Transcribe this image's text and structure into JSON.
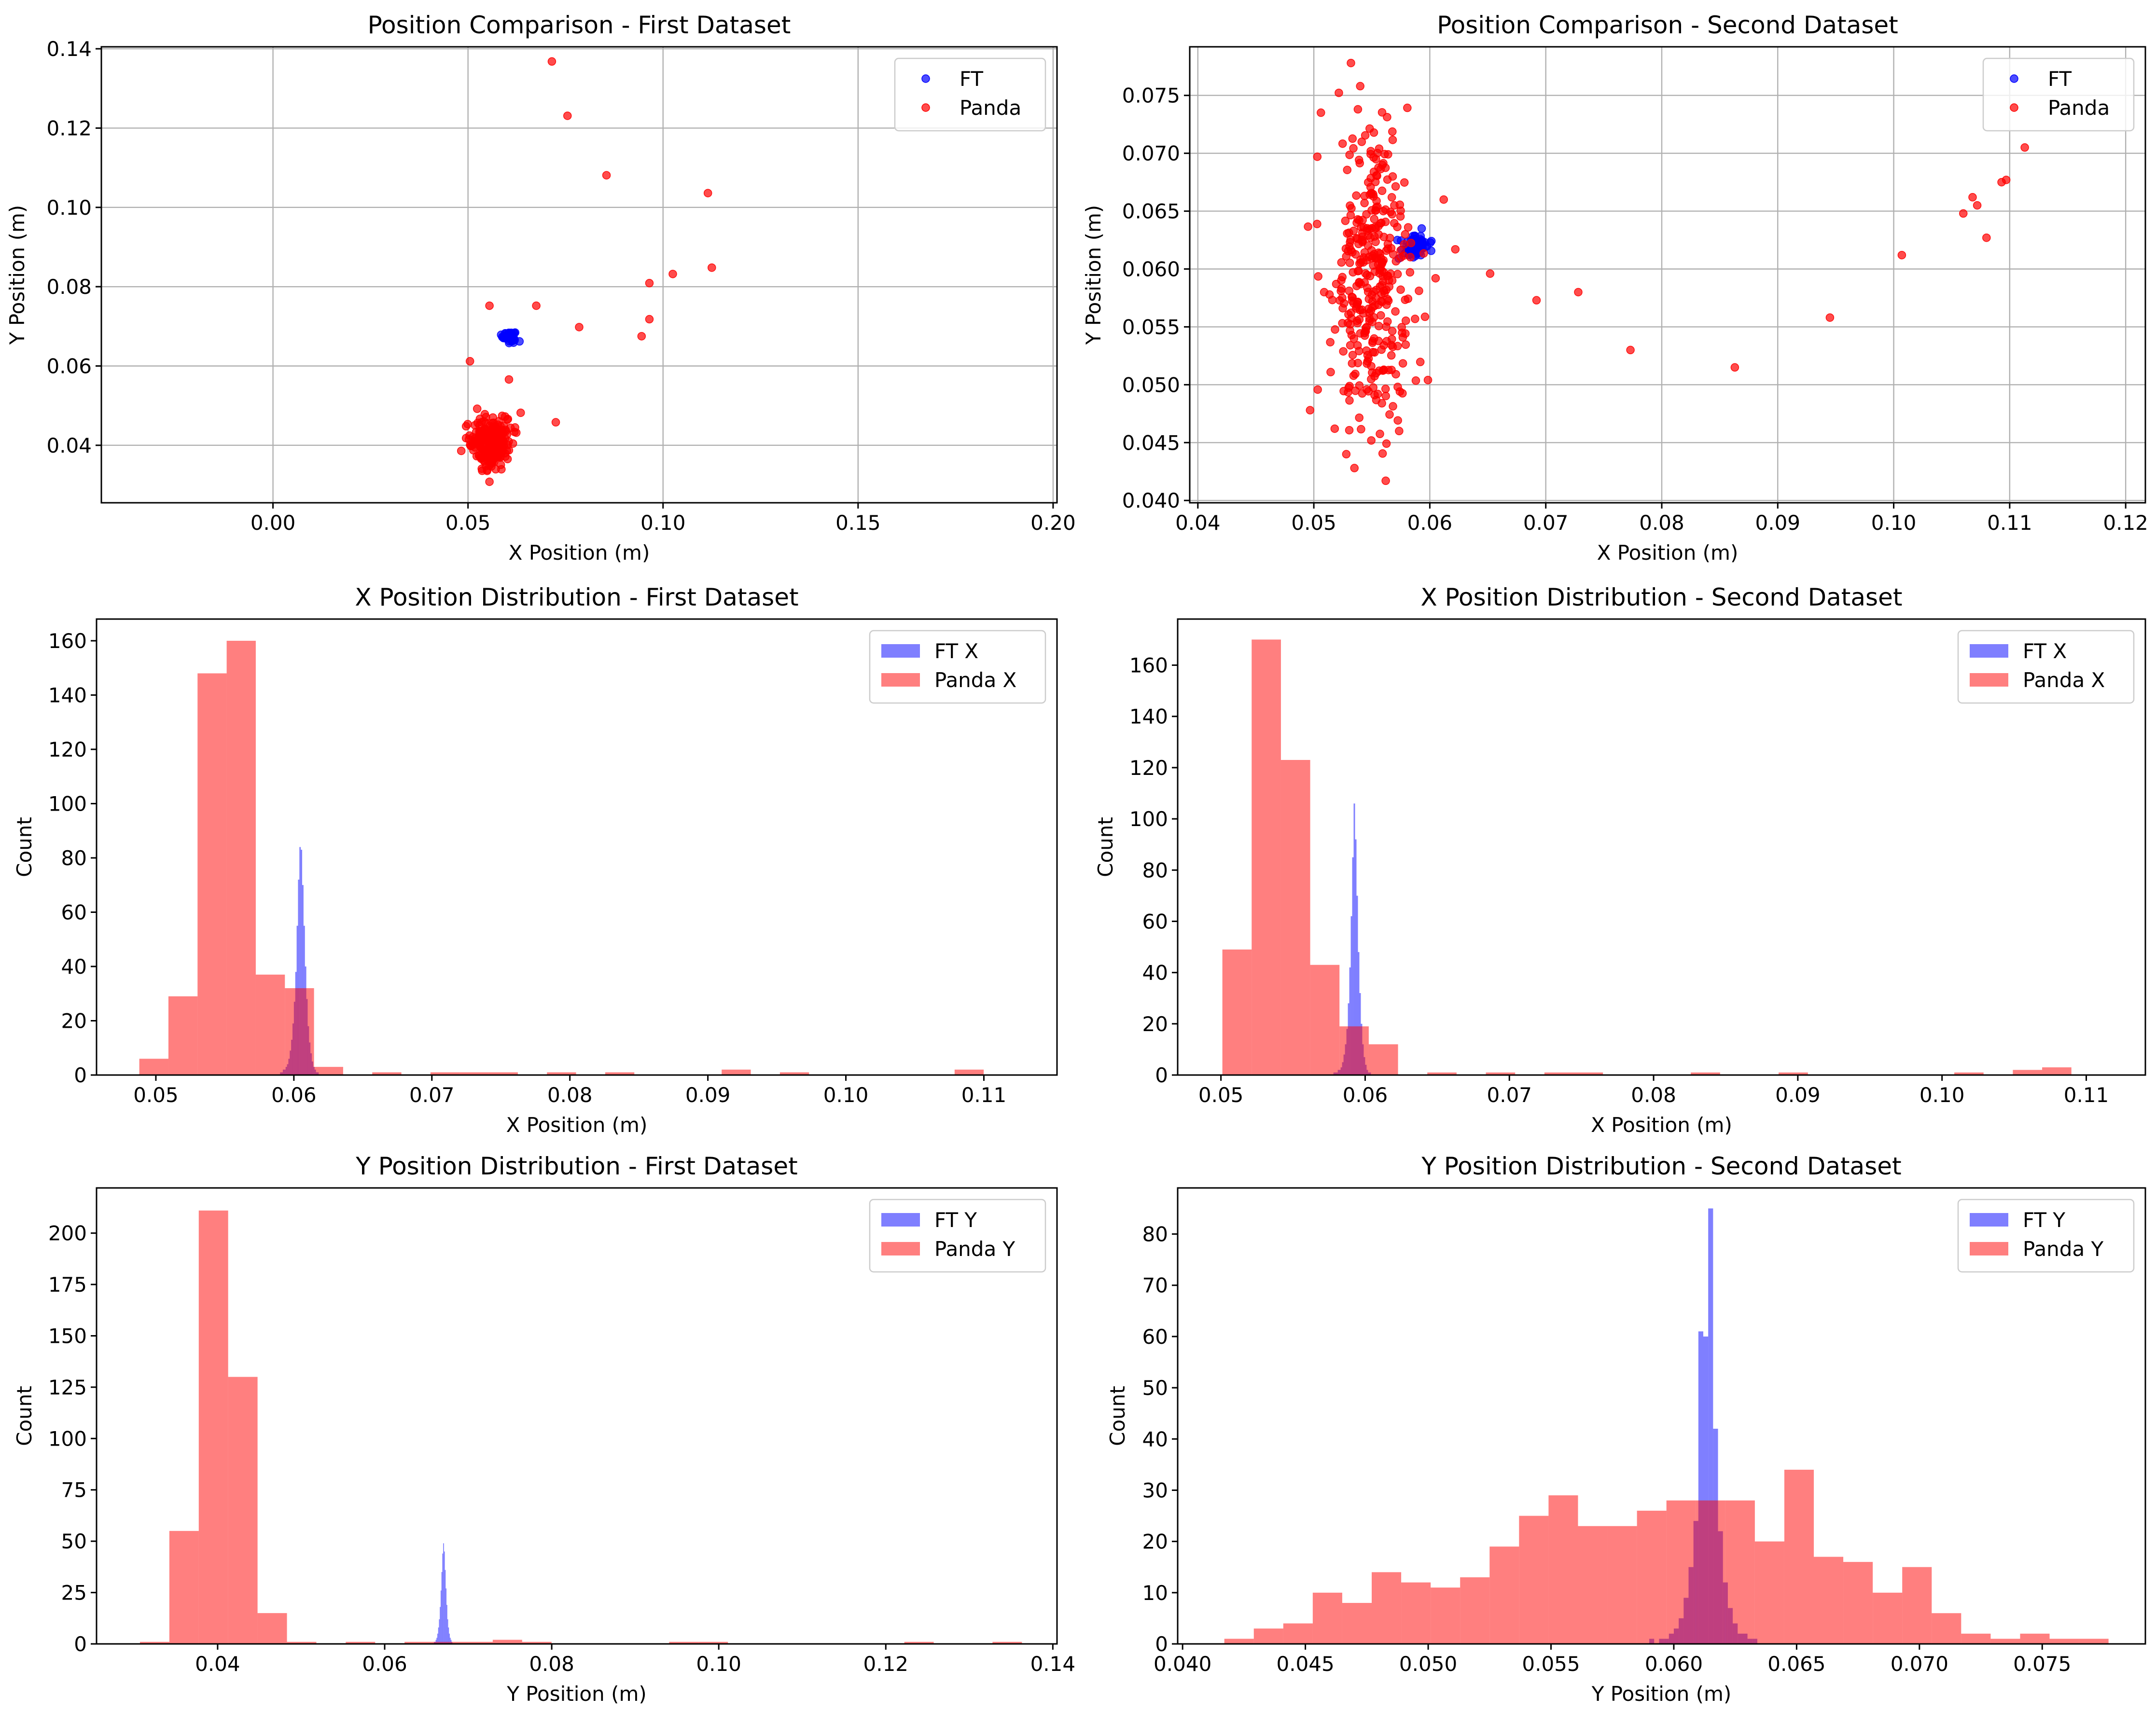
{
  "chart_data": [
    {
      "type": "scatter",
      "title": "Position Comparison - First Dataset",
      "xlabel": "X Position (m)",
      "ylabel": "Y Position (m)",
      "xlim": [
        -0.044,
        0.201
      ],
      "ylim": [
        0.0255,
        0.1405
      ],
      "xticks": [
        0.0,
        0.05,
        0.1,
        0.15,
        0.2
      ],
      "xtick_labels": [
        "0.00",
        "0.05",
        "0.10",
        "0.15",
        "0.20"
      ],
      "yticks": [
        0.04,
        0.06,
        0.08,
        0.1,
        0.12,
        0.14
      ],
      "ytick_labels": [
        "0.04",
        "0.06",
        "0.08",
        "0.10",
        "0.12",
        "0.14"
      ],
      "grid": true,
      "legend_position": "top-right",
      "series": [
        {
          "name": "FT",
          "color": "#0000ff",
          "clusters": [
            {
              "cx": 0.0605,
              "cy": 0.0675,
              "sx": 0.0008,
              "sy": 0.0006,
              "n": 60
            }
          ],
          "points": [
            [
              0.0632,
              0.0662
            ],
            [
              0.0598,
              0.0682
            ],
            [
              0.0615,
              0.0668
            ]
          ]
        },
        {
          "name": "Panda",
          "color": "#ff0000",
          "clusters": [
            {
              "cx": 0.0565,
              "cy": 0.0405,
              "sx": 0.0025,
              "sy": 0.0032,
              "n": 250
            }
          ],
          "points": [
            [
              0.0715,
              0.1368
            ],
            [
              0.0755,
              0.1231
            ],
            [
              0.0855,
              0.1081
            ],
            [
              0.1115,
              0.1036
            ],
            [
              0.0965,
              0.0809
            ],
            [
              0.1025,
              0.0832
            ],
            [
              0.1125,
              0.0848
            ],
            [
              0.0965,
              0.0718
            ],
            [
              0.0945,
              0.0675
            ],
            [
              0.0785,
              0.0698
            ],
            [
              0.0675,
              0.0752
            ],
            [
              0.0555,
              0.0752
            ],
            [
              0.0505,
              0.0612
            ],
            [
              0.0605,
              0.0566
            ],
            [
              0.0635,
              0.0482
            ],
            [
              0.0725,
              0.0458
            ],
            [
              0.0555,
              0.0308
            ],
            [
              0.0495,
              0.0418
            ],
            [
              0.0495,
              0.0448
            ]
          ]
        }
      ]
    },
    {
      "type": "scatter",
      "title": "Position Comparison - Second Dataset",
      "xlabel": "X Position (m)",
      "ylabel": "Y Position (m)",
      "xlim": [
        0.0393,
        0.1217
      ],
      "ylim": [
        0.0398,
        0.0792
      ],
      "xticks": [
        0.04,
        0.05,
        0.06,
        0.07,
        0.08,
        0.09,
        0.1,
        0.11,
        0.12
      ],
      "xtick_labels": [
        "0.04",
        "0.05",
        "0.06",
        "0.07",
        "0.08",
        "0.09",
        "0.10",
        "0.11",
        "0.12"
      ],
      "yticks": [
        0.04,
        0.045,
        0.05,
        0.055,
        0.06,
        0.065,
        0.07,
        0.075
      ],
      "ytick_labels": [
        "0.040",
        "0.045",
        "0.050",
        "0.055",
        "0.060",
        "0.065",
        "0.070",
        "0.075"
      ],
      "grid": true,
      "legend_position": "top-right",
      "series": [
        {
          "name": "FT",
          "color": "#0000ff",
          "clusters": [
            {
              "cx": 0.0588,
              "cy": 0.062,
              "sx": 0.0005,
              "sy": 0.0005,
              "n": 60
            }
          ],
          "points": [
            [
              0.0572,
              0.0625
            ],
            [
              0.0582,
              0.0612
            ],
            [
              0.0593,
              0.0635
            ]
          ]
        },
        {
          "name": "Panda",
          "color": "#ff0000",
          "clusters": [
            {
              "cx": 0.0548,
              "cy": 0.059,
              "sx": 0.0018,
              "sy": 0.0062,
              "n": 360
            }
          ],
          "points": [
            [
              0.0692,
              0.0573
            ],
            [
              0.0728,
              0.058
            ],
            [
              0.0773,
              0.053
            ],
            [
              0.0863,
              0.0515
            ],
            [
              0.0945,
              0.0558
            ],
            [
              0.1007,
              0.0612
            ],
            [
              0.106,
              0.0648
            ],
            [
              0.1068,
              0.0662
            ],
            [
              0.1072,
              0.0655
            ],
            [
              0.108,
              0.0627
            ],
            [
              0.1093,
              0.0675
            ],
            [
              0.1097,
              0.0677
            ],
            [
              0.1113,
              0.0705
            ],
            [
              0.0652,
              0.0596
            ],
            [
              0.0622,
              0.0617
            ],
            [
              0.0612,
              0.066
            ],
            [
              0.0605,
              0.0592
            ],
            [
              0.0562,
              0.0417
            ],
            [
              0.0532,
              0.0778
            ],
            [
              0.054,
              0.0758
            ],
            [
              0.0538,
              0.0738
            ],
            [
              0.0503,
              0.0697
            ],
            [
              0.0528,
              0.044
            ],
            [
              0.0535,
              0.0428
            ],
            [
              0.0518,
              0.0462
            ]
          ]
        }
      ]
    },
    {
      "type": "histogram",
      "title": "X Position Distribution - First Dataset",
      "xlabel": "X Position (m)",
      "ylabel": "Count",
      "xlim": [
        0.0457,
        0.1153
      ],
      "ylim": [
        0,
        168
      ],
      "xticks": [
        0.05,
        0.06,
        0.07,
        0.08,
        0.09,
        0.1,
        0.11
      ],
      "xtick_labels": [
        "0.05",
        "0.06",
        "0.07",
        "0.08",
        "0.09",
        "0.10",
        "0.11"
      ],
      "yticks": [
        0,
        20,
        40,
        60,
        80,
        100,
        120,
        140,
        160
      ],
      "ytick_labels": [
        "0",
        "20",
        "40",
        "60",
        "80",
        "100",
        "120",
        "140",
        "160"
      ],
      "legend_position": "top-right",
      "series": [
        {
          "name": "FT X",
          "color": "#0000ff",
          "opacity": 0.5,
          "bin_start": 0.059,
          "bin_width": 0.0001,
          "counts": [
            1,
            1,
            2,
            2,
            3,
            4,
            6,
            9,
            13,
            19,
            27,
            38,
            55,
            72,
            84,
            83,
            70,
            55,
            40,
            28,
            18,
            12,
            8,
            5,
            3,
            2,
            1,
            1
          ]
        },
        {
          "name": "Panda X",
          "color": "#ff0000",
          "opacity": 0.5,
          "bin_start": 0.0488,
          "bin_width": 0.00211,
          "counts": [
            6,
            29,
            148,
            160,
            37,
            32,
            3,
            0,
            1,
            0,
            1,
            1,
            1,
            0,
            1,
            0,
            1,
            0,
            0,
            0,
            2,
            0,
            1,
            0,
            0,
            0,
            0,
            0,
            2,
            0
          ]
        }
      ]
    },
    {
      "type": "histogram",
      "title": "X Position Distribution - Second Dataset",
      "xlabel": "X Position (m)",
      "ylabel": "Count",
      "xlim": [
        0.047,
        0.1141
      ],
      "ylim": [
        0,
        178
      ],
      "xticks": [
        0.05,
        0.06,
        0.07,
        0.08,
        0.09,
        0.1,
        0.11
      ],
      "xtick_labels": [
        "0.05",
        "0.06",
        "0.07",
        "0.08",
        "0.09",
        "0.10",
        "0.11"
      ],
      "yticks": [
        0,
        20,
        40,
        60,
        80,
        100,
        120,
        140,
        160
      ],
      "ytick_labels": [
        "0",
        "20",
        "40",
        "60",
        "80",
        "100",
        "120",
        "140",
        "160"
      ],
      "legend_position": "top-right",
      "series": [
        {
          "name": "FT X",
          "color": "#0000ff",
          "opacity": 0.5,
          "bin_start": 0.0578,
          "bin_width": 0.0001,
          "counts": [
            1,
            1,
            1,
            2,
            2,
            3,
            5,
            8,
            12,
            18,
            28,
            42,
            62,
            85,
            106,
            92,
            70,
            48,
            32,
            20,
            12,
            7,
            4,
            2,
            1,
            1
          ]
        },
        {
          "name": "Panda X",
          "color": "#ff0000",
          "opacity": 0.5,
          "bin_start": 0.0501,
          "bin_width": 0.00203,
          "counts": [
            49,
            170,
            123,
            43,
            19,
            12,
            0,
            1,
            0,
            1,
            0,
            1,
            1,
            0,
            0,
            0,
            1,
            0,
            0,
            1,
            0,
            0,
            0,
            0,
            0,
            1,
            0,
            2,
            3,
            0
          ]
        }
      ]
    },
    {
      "type": "histogram",
      "title": "Y Position Distribution - First Dataset",
      "xlabel": "Y Position (m)",
      "ylabel": "Count",
      "xlim": [
        0.0255,
        0.1405
      ],
      "ylim": [
        0,
        222
      ],
      "xticks": [
        0.04,
        0.06,
        0.08,
        0.1,
        0.12,
        0.14
      ],
      "xtick_labels": [
        "0.04",
        "0.06",
        "0.08",
        "0.10",
        "0.12",
        "0.14"
      ],
      "yticks": [
        0,
        25,
        50,
        75,
        100,
        125,
        150,
        175,
        200
      ],
      "ytick_labels": [
        "0",
        "25",
        "50",
        "75",
        "100",
        "125",
        "150",
        "175",
        "200"
      ],
      "legend_position": "top-right",
      "series": [
        {
          "name": "FT Y",
          "color": "#0000ff",
          "opacity": 0.5,
          "bin_start": 0.0659,
          "bin_width": 0.0001,
          "counts": [
            1,
            1,
            2,
            3,
            5,
            8,
            12,
            18,
            26,
            35,
            44,
            49,
            45,
            36,
            27,
            19,
            12,
            8,
            5,
            3,
            2,
            1
          ]
        },
        {
          "name": "Panda Y",
          "color": "#ff0000",
          "opacity": 0.5,
          "bin_start": 0.0307,
          "bin_width": 0.00352,
          "counts": [
            1,
            55,
            211,
            130,
            15,
            1,
            0,
            1,
            0,
            1,
            1,
            1,
            2,
            1,
            0,
            0,
            0,
            0,
            1,
            1,
            0,
            0,
            0,
            0,
            0,
            0,
            1,
            0,
            0,
            1
          ]
        }
      ]
    },
    {
      "type": "histogram",
      "title": "Y Position Distribution - Second Dataset",
      "xlabel": "Y Position (m)",
      "ylabel": "Count",
      "xlim": [
        0.0398,
        0.0792
      ],
      "ylim": [
        0,
        89
      ],
      "xticks": [
        0.04,
        0.045,
        0.05,
        0.055,
        0.06,
        0.065,
        0.07,
        0.075
      ],
      "xtick_labels": [
        "0.040",
        "0.045",
        "0.050",
        "0.055",
        "0.060",
        "0.065",
        "0.070",
        "0.075"
      ],
      "yticks": [
        0,
        10,
        20,
        30,
        40,
        50,
        60,
        70,
        80
      ],
      "ytick_labels": [
        "0",
        "10",
        "20",
        "30",
        "40",
        "50",
        "60",
        "70",
        "80"
      ],
      "legend_position": "top-right",
      "series": [
        {
          "name": "FT Y",
          "color": "#0000ff",
          "opacity": 0.5,
          "bin_start": 0.059,
          "bin_width": 0.0002,
          "counts": [
            1,
            0,
            1,
            1,
            2,
            3,
            5,
            9,
            15,
            24,
            61,
            60,
            85,
            42,
            22,
            12,
            7,
            4,
            2,
            2,
            1,
            1
          ]
        },
        {
          "name": "Panda Y",
          "color": "#ff0000",
          "opacity": 0.5,
          "bin_start": 0.0417,
          "bin_width": 0.0012,
          "counts": [
            1,
            3,
            4,
            10,
            8,
            14,
            12,
            11,
            13,
            19,
            25,
            29,
            23,
            23,
            26,
            28,
            28,
            28,
            20,
            34,
            17,
            16,
            10,
            15,
            6,
            2,
            1,
            2,
            1,
            1
          ]
        }
      ]
    }
  ]
}
